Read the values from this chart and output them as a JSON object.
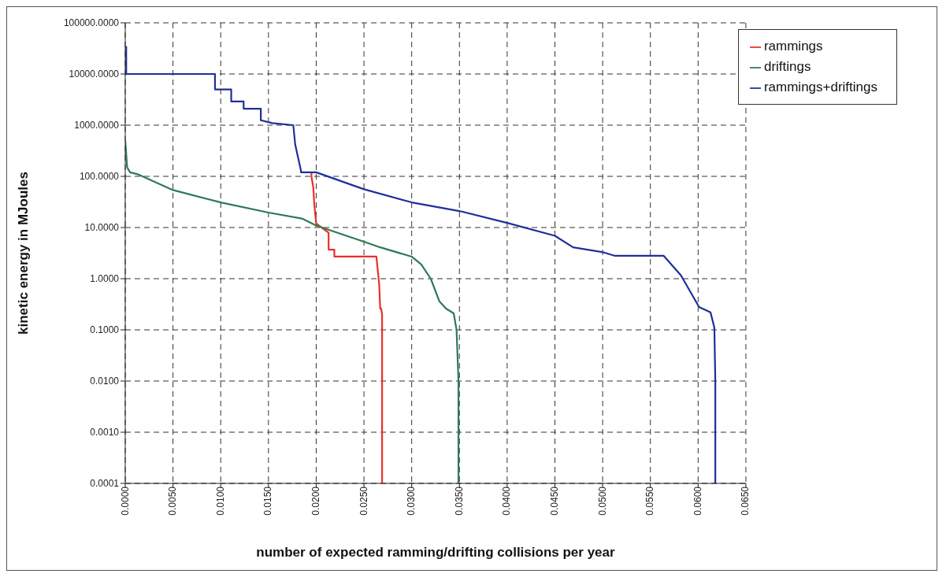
{
  "chart_data": {
    "type": "line",
    "xlabel": "number of expected ramming/drifting collisions per year",
    "ylabel": "kinetic energy in MJoules",
    "log": "y",
    "grid": true,
    "legend": "top right",
    "marker": "none",
    "line_style": "solid",
    "xlim": [
      0,
      0.065
    ],
    "xticks": [
      {
        "value": 0,
        "label": "0.0000"
      },
      {
        "value": 0.005,
        "label": "0.0050"
      },
      {
        "value": 0.01,
        "label": "0.0100"
      },
      {
        "value": 0.015,
        "label": "0.0150"
      },
      {
        "value": 0.02,
        "label": "0.0200"
      },
      {
        "value": 0.025,
        "label": "0.0250"
      },
      {
        "value": 0.03,
        "label": "0.0300"
      },
      {
        "value": 0.035,
        "label": "0.0350"
      },
      {
        "value": 0.04,
        "label": "0.0400"
      },
      {
        "value": 0.045,
        "label": "0.0450"
      },
      {
        "value": 0.05,
        "label": "0.0500"
      },
      {
        "value": 0.055,
        "label": "0.0550"
      },
      {
        "value": 0.06,
        "label": "0.0600"
      },
      {
        "value": 0.065,
        "label": "0.0650"
      }
    ],
    "ylim": [
      0.0001,
      100000
    ],
    "yticks": [
      {
        "value": 0.0001,
        "label": "0.0001"
      },
      {
        "value": 0.001,
        "label": "0.0010"
      },
      {
        "value": 0.01,
        "label": "0.0100"
      },
      {
        "value": 0.1,
        "label": "0.1000"
      },
      {
        "value": 1,
        "label": "1.0000"
      },
      {
        "value": 10,
        "label": "10.0000"
      },
      {
        "value": 100,
        "label": "100.0000"
      },
      {
        "value": 1000,
        "label": "1000.0000"
      },
      {
        "value": 10000,
        "label": "10000.0000"
      },
      {
        "value": 100000,
        "label": "100000.0000"
      }
    ],
    "series": [
      {
        "name": "rammings",
        "color": "#e8312a",
        "x": [
          0.0195,
          0.0195,
          0.0197,
          0.0198,
          0.02,
          0.0213,
          0.0213,
          0.0219,
          0.0219,
          0.0263,
          0.0266,
          0.0267,
          0.0268,
          0.0269,
          0.0269
        ],
        "values": [
          120,
          100,
          60,
          28,
          12,
          7.9,
          3.7,
          3.7,
          2.7,
          2.7,
          0.78,
          0.26,
          0.26,
          0.2,
          0.0001
        ]
      },
      {
        "name": "driftings",
        "color": "#2e7a55",
        "x": [
          0,
          0.0002,
          0.0005,
          0.0013,
          0.005,
          0.01,
          0.015,
          0.0185,
          0.02,
          0.025,
          0.0267,
          0.03,
          0.031,
          0.032,
          0.0329,
          0.0336,
          0.0344,
          0.0347,
          0.0349,
          0.0349
        ],
        "values": [
          500,
          150,
          120,
          110,
          54,
          31,
          19.6,
          15,
          10.9,
          5.3,
          4.1,
          2.7,
          1.9,
          1,
          0.36,
          0.26,
          0.21,
          0.1,
          0.01,
          0.0001
        ]
      },
      {
        "name": "rammings+driftings",
        "color": "#1f2f9a",
        "x": [
          0.0001,
          0.0001,
          0.0094,
          0.0094,
          0.0111,
          0.0111,
          0.0124,
          0.0124,
          0.0142,
          0.0142,
          0.0154,
          0.0176,
          0.0178,
          0.0184,
          0.0184,
          0.02,
          0.025,
          0.03,
          0.035,
          0.04,
          0.045,
          0.0469,
          0.05,
          0.0513,
          0.0564,
          0.0582,
          0.0601,
          0.0613,
          0.0617,
          0.0618,
          0.0618
        ],
        "values": [
          35000,
          10000,
          10000,
          5000,
          5000,
          2900,
          2900,
          2100,
          2100,
          1250,
          1100,
          1000,
          420,
          130,
          120,
          120,
          56,
          31,
          21,
          12.3,
          6.9,
          4.1,
          3.3,
          2.8,
          2.8,
          1.16,
          0.28,
          0.22,
          0.11,
          0.01,
          0.0001
        ]
      }
    ]
  }
}
